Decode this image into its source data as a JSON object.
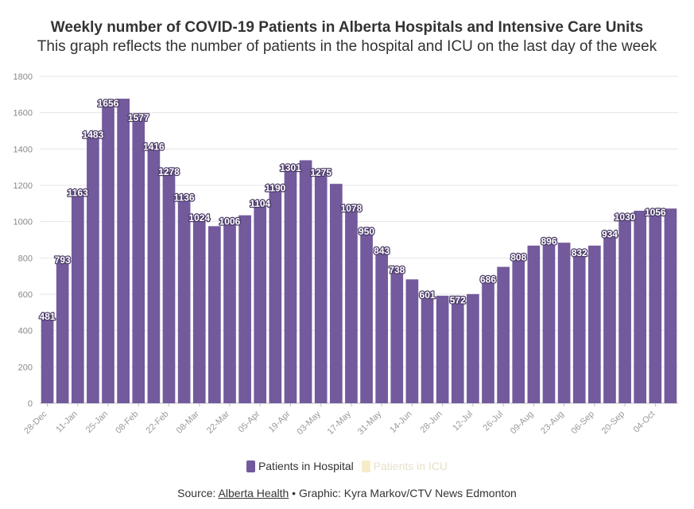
{
  "header": {
    "title": "Weekly number of COVID-19 Patients in Alberta Hospitals and Intensive Care Units",
    "subtitle": "This graph reflects the number of patients in the hospital and ICU on the last day of the week"
  },
  "legend": {
    "hospital_label": "Patients in Hospital",
    "icu_label": "Patients in ICU"
  },
  "source": {
    "prefix": "Source: ",
    "link_text": "Alberta Health",
    "suffix": " • Graphic: Kyra Markov/CTV News Edmonton"
  },
  "colors": {
    "hospital": "#725a9c",
    "icu": "#f7ecc9"
  },
  "chart_data": {
    "type": "bar",
    "ylim": [
      0,
      1800
    ],
    "yticks": [
      0,
      200,
      400,
      600,
      800,
      1000,
      1200,
      1400,
      1600,
      1800
    ],
    "grid": true,
    "legend_position": "bottom",
    "xtick_labels": [
      "28-Dec",
      "11-Jan",
      "25-Jan",
      "08-Feb",
      "22-Feb",
      "08-Mar",
      "22-Mar",
      "05-Apr",
      "19-Apr",
      "03-May",
      "17-May",
      "31-May",
      "14-Jun",
      "28-Jun",
      "12-Jul",
      "26-Jul",
      "09-Aug",
      "23-Aug",
      "06-Sep",
      "20-Sep",
      "04-Oct"
    ],
    "series": [
      {
        "name": "Patients in Hospital",
        "values": [
          481,
          793,
          1163,
          1483,
          1656,
          1677,
          1577,
          1416,
          1278,
          1136,
          1024,
          975,
          1006,
          1035,
          1104,
          1190,
          1301,
          1338,
          1275,
          1208,
          1078,
          950,
          843,
          738,
          682,
          601,
          592,
          572,
          601,
          686,
          751,
          808,
          868,
          896,
          884,
          832,
          868,
          934,
          1030,
          1060,
          1056,
          1072
        ],
        "data_labels": {
          "0": "481",
          "1": "793",
          "2": "1163",
          "3": "1483",
          "4": "1656",
          "6": "1577",
          "7": "1416",
          "8": "1278",
          "9": "1136",
          "10": "1024",
          "12": "1006",
          "14": "1104",
          "15": "1190",
          "16": "1301",
          "18": "1275",
          "20": "1078",
          "21": "950",
          "22": "843",
          "23": "738",
          "25": "601",
          "27": "572",
          "29": "686",
          "31": "808",
          "33": "896",
          "35": "832",
          "37": "934",
          "38": "1030",
          "40": "1056"
        }
      },
      {
        "name": "Patients in ICU",
        "values": []
      }
    ]
  }
}
